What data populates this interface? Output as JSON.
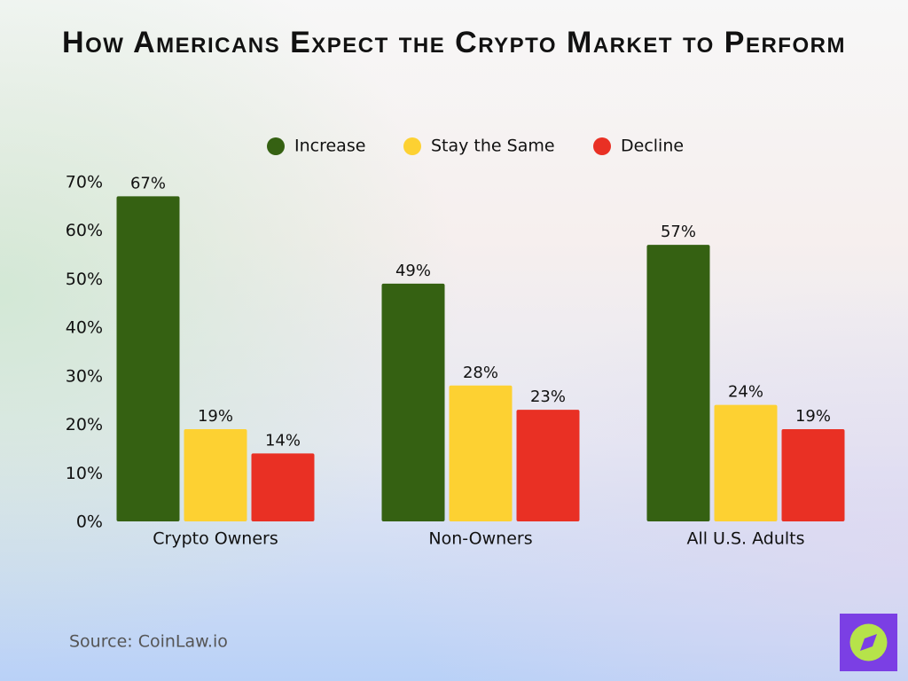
{
  "chart_data": {
    "type": "bar",
    "title": "How Americans Expect the Crypto Market to Perform",
    "source": "Source: CoinLaw.io",
    "categories": [
      "Crypto Owners",
      "Non-Owners",
      "All U.S. Adults"
    ],
    "series": [
      {
        "name": "Increase",
        "color": "#356112",
        "values": [
          67,
          49,
          57
        ],
        "value_labels": [
          "67%",
          "49%",
          "57%"
        ]
      },
      {
        "name": "Stay the Same",
        "color": "#fdd132",
        "values": [
          19,
          28,
          24
        ],
        "value_labels": [
          "19%",
          "28%",
          "24%"
        ]
      },
      {
        "name": "Decline",
        "color": "#e93024",
        "values": [
          14,
          23,
          19
        ],
        "value_labels": [
          "14%",
          "23%",
          "19%"
        ]
      }
    ],
    "ylim": [
      0,
      70
    ],
    "yticks": [
      {
        "value": 0,
        "label": "0%"
      },
      {
        "value": 10,
        "label": "10%"
      },
      {
        "value": 20,
        "label": "20%"
      },
      {
        "value": 30,
        "label": "30%"
      },
      {
        "value": 40,
        "label": "40%"
      },
      {
        "value": 50,
        "label": "50%"
      },
      {
        "value": 60,
        "label": "60%"
      },
      {
        "value": 70,
        "label": "70%"
      }
    ],
    "grid": false,
    "legend": "top"
  }
}
